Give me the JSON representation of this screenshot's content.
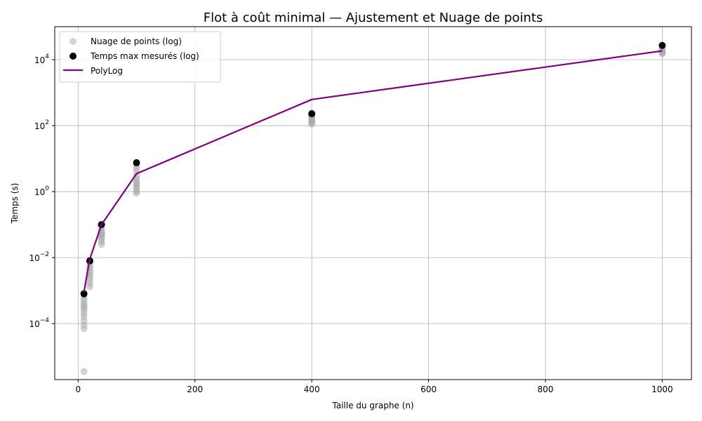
{
  "chart_data": {
    "type": "scatter",
    "title": "Flot à coût minimal — Ajustement et Nuage de points",
    "xlabel": "Taille du graphe (n)",
    "ylabel": "Temps (s)",
    "xlim": [
      -40,
      1050
    ],
    "ylim": [
      2e-06,
      100000.0
    ],
    "yscale": "log",
    "grid": true,
    "legend_position": "top-left",
    "x_ticks": [
      0,
      200,
      400,
      600,
      800,
      1000
    ],
    "x_tick_labels": [
      "0",
      "200",
      "400",
      "600",
      "800",
      "1000"
    ],
    "y_ticks": [
      0.0001,
      0.01,
      1,
      100,
      10000
    ],
    "y_tick_labels": [
      {
        "base": "10",
        "exp": "−4"
      },
      {
        "base": "10",
        "exp": "−2"
      },
      {
        "base": "10",
        "exp": "0"
      },
      {
        "base": "10",
        "exp": "2"
      },
      {
        "base": "10",
        "exp": "4"
      }
    ],
    "series": [
      {
        "name": "Nuage de points (log)",
        "kind": "scatter",
        "color": "#aaaaaa",
        "points": [
          [
            10,
            3.5e-06
          ],
          [
            10,
            7e-05
          ],
          [
            10,
            9e-05
          ],
          [
            10,
            0.00012
          ],
          [
            10,
            0.00016
          ],
          [
            10,
            0.0002
          ],
          [
            10,
            0.00025
          ],
          [
            10,
            0.0003
          ],
          [
            10,
            0.00035
          ],
          [
            10,
            0.0004
          ],
          [
            10,
            0.0005
          ],
          [
            10,
            0.0006
          ],
          [
            20,
            0.0013
          ],
          [
            20,
            0.0016
          ],
          [
            20,
            0.002
          ],
          [
            20,
            0.0025
          ],
          [
            20,
            0.003
          ],
          [
            20,
            0.0035
          ],
          [
            20,
            0.0042
          ],
          [
            20,
            0.005
          ],
          [
            20,
            0.006
          ],
          [
            20,
            0.007
          ],
          [
            40,
            0.025
          ],
          [
            40,
            0.03
          ],
          [
            40,
            0.035
          ],
          [
            40,
            0.04
          ],
          [
            40,
            0.045
          ],
          [
            40,
            0.05
          ],
          [
            40,
            0.055
          ],
          [
            40,
            0.06
          ],
          [
            40,
            0.07
          ],
          [
            40,
            0.08
          ],
          [
            100,
            0.9
          ],
          [
            100,
            1.0
          ],
          [
            100,
            1.2
          ],
          [
            100,
            1.4
          ],
          [
            100,
            1.6
          ],
          [
            100,
            1.8
          ],
          [
            100,
            2.0
          ],
          [
            100,
            2.5
          ],
          [
            100,
            3.0
          ],
          [
            100,
            4.0
          ],
          [
            100,
            5.0
          ],
          [
            100,
            6.0
          ],
          [
            400,
            110
          ],
          [
            400,
            120
          ],
          [
            400,
            130
          ],
          [
            400,
            140
          ],
          [
            400,
            150
          ],
          [
            400,
            160
          ],
          [
            400,
            180
          ],
          [
            400,
            200
          ],
          [
            1000,
            15000
          ],
          [
            1000,
            16000
          ],
          [
            1000,
            17000
          ],
          [
            1000,
            18000
          ],
          [
            1000,
            20000
          ],
          [
            1000,
            22000
          ]
        ]
      },
      {
        "name": "Temps max mesurés (log)",
        "kind": "scatter",
        "color": "#000000",
        "points": [
          [
            10,
            0.0008
          ],
          [
            20,
            0.008
          ],
          [
            40,
            0.1
          ],
          [
            100,
            7.5
          ],
          [
            400,
            230
          ],
          [
            1000,
            27000
          ]
        ]
      },
      {
        "name": "PolyLog",
        "kind": "line",
        "color": "#800080",
        "points": [
          [
            10,
            0.0009
          ],
          [
            20,
            0.009
          ],
          [
            40,
            0.1
          ],
          [
            100,
            3.5
          ],
          [
            400,
            620
          ],
          [
            1000,
            18500
          ]
        ]
      }
    ]
  }
}
